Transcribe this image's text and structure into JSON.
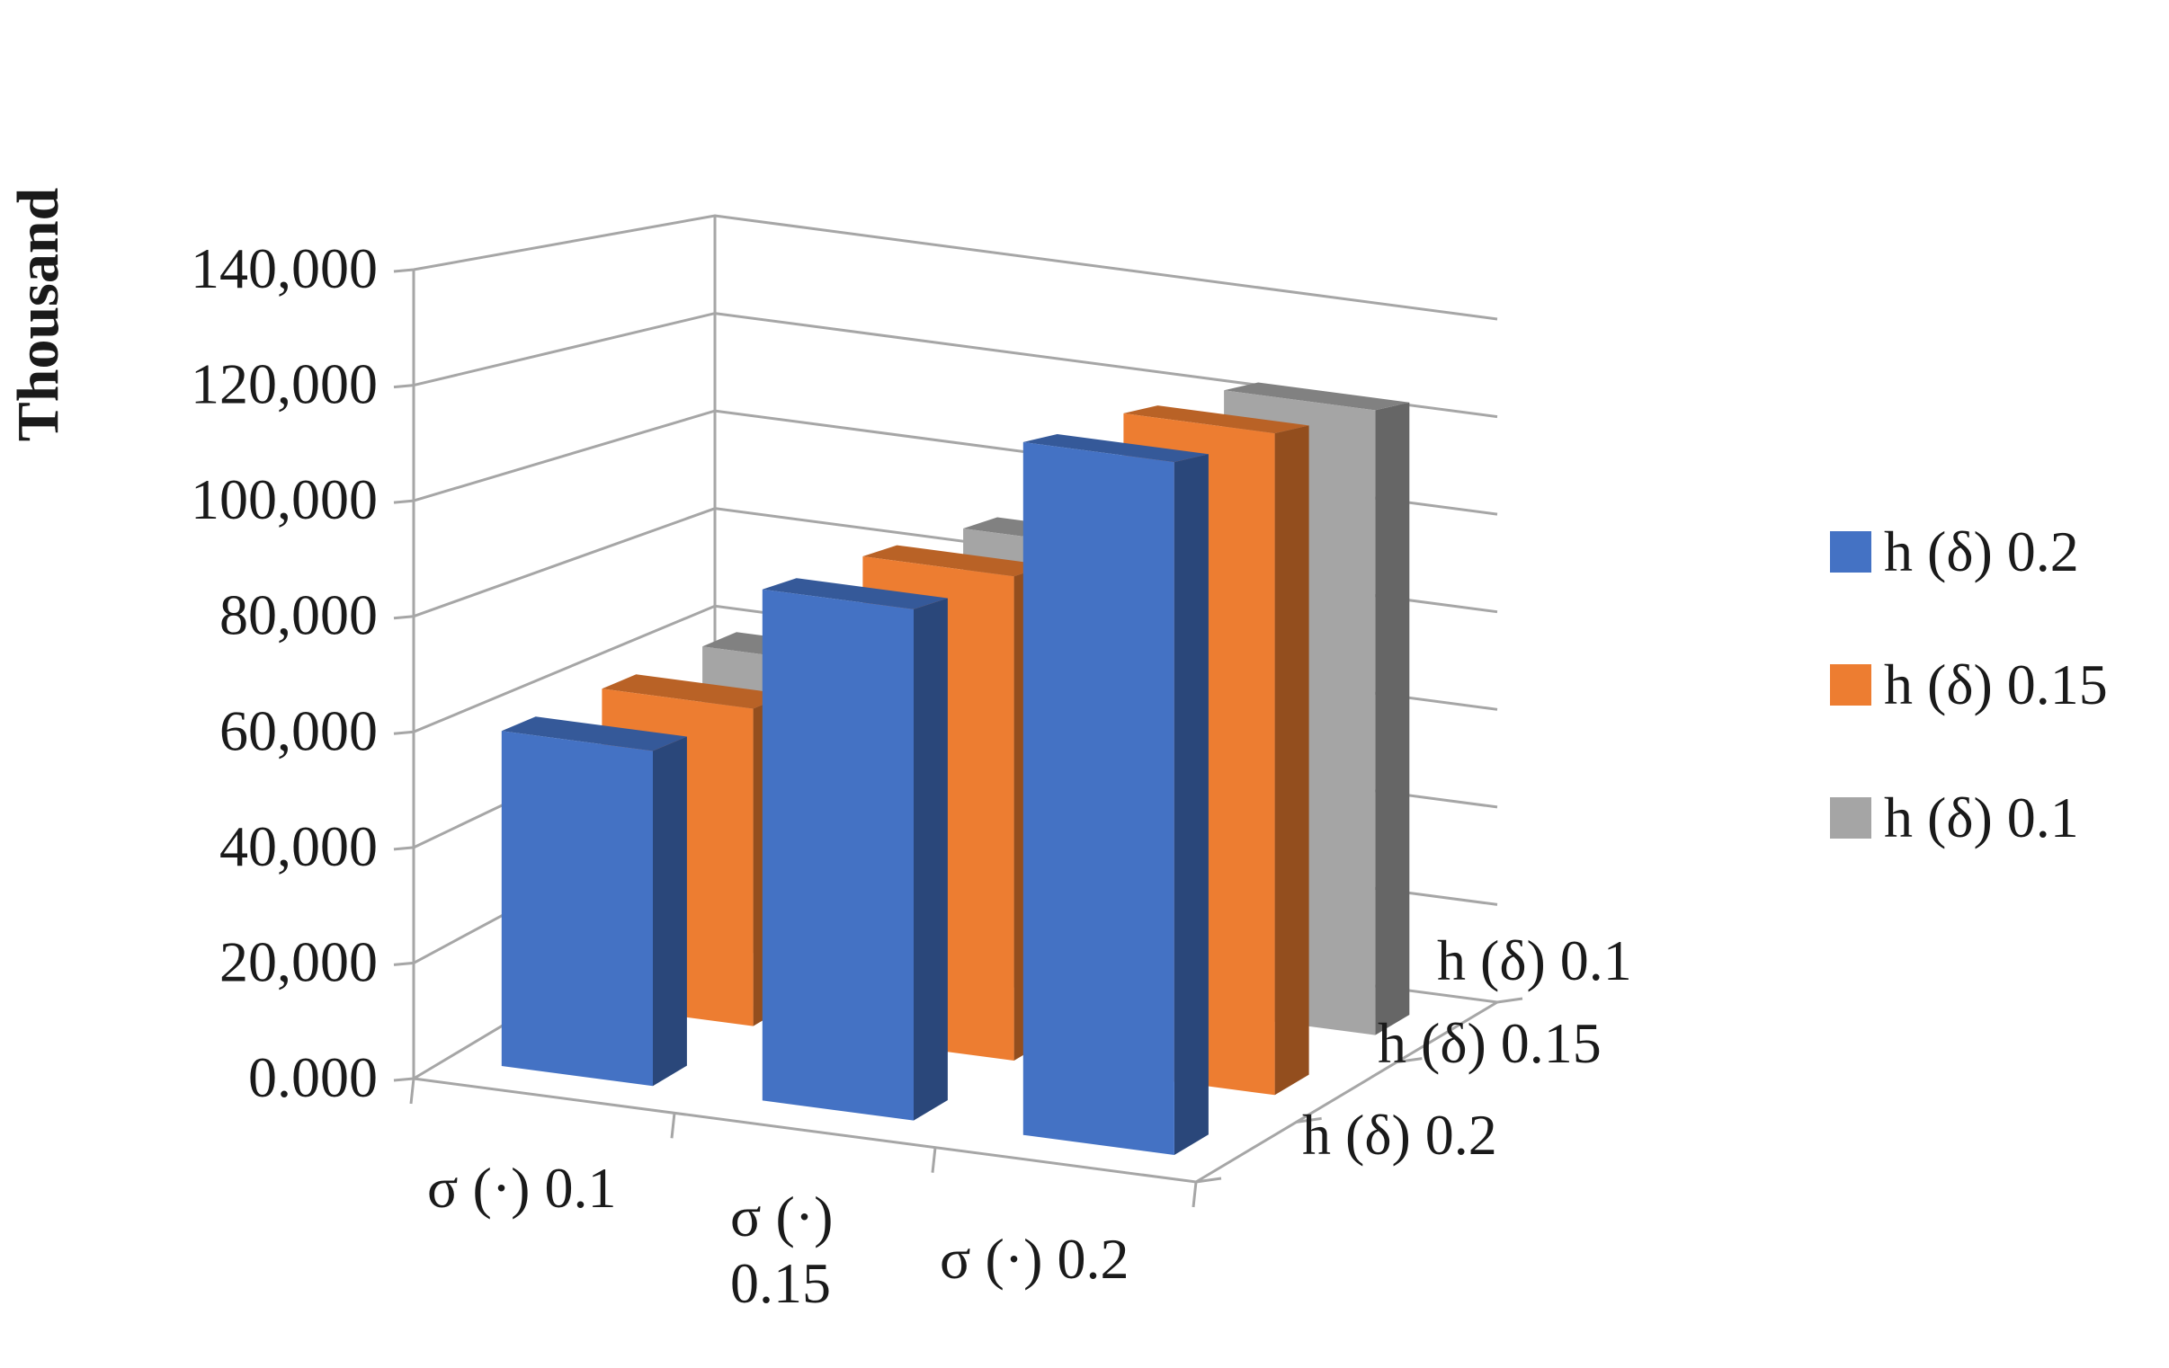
{
  "chart_data": {
    "type": "bar",
    "style": "3d-column",
    "ylabel": "Thousand",
    "ylim": [
      0,
      140000
    ],
    "yticks": [
      "0.000",
      "20,000",
      "40,000",
      "60,000",
      "80,000",
      "100,000",
      "120,000",
      "140,000"
    ],
    "categories": [
      [
        "σ (·) 0.1"
      ],
      [
        "σ (·)",
        "0.15"
      ],
      [
        "σ (·) 0.2"
      ]
    ],
    "depth_labels": [
      "h (δ) 0.1",
      "h (δ) 0.15",
      "h (δ) 0.2"
    ],
    "series": [
      {
        "name": "h (δ) 0.2",
        "color": "#4472C4",
        "values": [
          59000,
          90000,
          122000
        ]
      },
      {
        "name": "h (δ) 0.15",
        "color": "#ED7D31",
        "values": [
          59000,
          90000,
          123000
        ]
      },
      {
        "name": "h (δ) 0.1",
        "color": "#A5A5A5",
        "values": [
          59000,
          89000,
          123000
        ]
      }
    ],
    "legend_position": "right",
    "grid": true
  }
}
